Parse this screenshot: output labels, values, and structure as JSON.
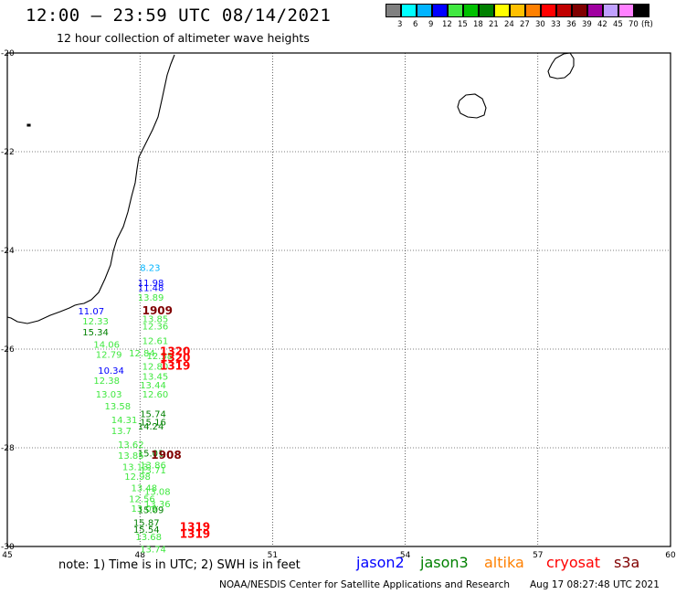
{
  "header": {
    "title": "12:00 – 23:59 UTC 08/14/2021",
    "subtitle": "12 hour collection of altimeter wave heights"
  },
  "color_scale": {
    "colors": [
      "#808080",
      "#00ffff",
      "#00b4ff",
      "#0000ff",
      "#40e840",
      "#00c000",
      "#008000",
      "#ffff00",
      "#ffc000",
      "#ff8000",
      "#ff0000",
      "#c00000",
      "#800000",
      "#a000a0",
      "#c0a0ff",
      "#ff80ff",
      "#000000"
    ],
    "labels": [
      "3",
      "6",
      "9",
      "12",
      "15",
      "18",
      "21",
      "24",
      "27",
      "30",
      "33",
      "36",
      "39",
      "42",
      "45",
      "70",
      "(ft)"
    ]
  },
  "map": {
    "lon_ticks": [
      "45",
      "48",
      "51",
      "54",
      "57",
      "60"
    ],
    "lat_ticks": [
      "-20",
      "-22",
      "-24",
      "-26",
      "-28",
      "-30"
    ],
    "observations": [
      {
        "text": "8.23",
        "lon": 48.0,
        "lat": -24.42,
        "color": "#00b4ff"
      },
      {
        "text": "11.98",
        "lon": 47.95,
        "lat": -24.72,
        "color": "#0000ff"
      },
      {
        "text": "11.48",
        "lon": 47.95,
        "lat": -24.82,
        "color": "#0000ff"
      },
      {
        "text": "13.89",
        "lon": 47.95,
        "lat": -25.02,
        "color": "#40e840"
      },
      {
        "text": "11.07",
        "lon": 46.6,
        "lat": -25.3,
        "color": "#0000ff"
      },
      {
        "text": "1909",
        "lon": 48.05,
        "lat": -25.3,
        "color": "#800000"
      },
      {
        "text": "13.85",
        "lon": 48.05,
        "lat": -25.45,
        "color": "#40e840"
      },
      {
        "text": "12.33",
        "lon": 46.7,
        "lat": -25.5,
        "color": "#40e840"
      },
      {
        "text": "12.36",
        "lon": 48.05,
        "lat": -25.6,
        "color": "#40e840"
      },
      {
        "text": "15.34",
        "lon": 46.7,
        "lat": -25.72,
        "color": "#008000"
      },
      {
        "text": "12.61",
        "lon": 48.05,
        "lat": -25.9,
        "color": "#40e840"
      },
      {
        "text": "14.06",
        "lon": 46.95,
        "lat": -25.97,
        "color": "#40e840"
      },
      {
        "text": "12.79",
        "lon": 47.0,
        "lat": -26.18,
        "color": "#40e840"
      },
      {
        "text": "12.84",
        "lon": 47.75,
        "lat": -26.15,
        "color": "#40e840"
      },
      {
        "text": "12.58",
        "lon": 48.15,
        "lat": -26.2,
        "color": "#40e840"
      },
      {
        "text": "1320",
        "lon": 48.45,
        "lat": -26.12,
        "color": "#ff0000"
      },
      {
        "text": "1320",
        "lon": 48.45,
        "lat": -26.25,
        "color": "#ff0000"
      },
      {
        "text": "12.80",
        "lon": 48.05,
        "lat": -26.42,
        "color": "#40e840"
      },
      {
        "text": "1319",
        "lon": 48.45,
        "lat": -26.42,
        "color": "#ff0000"
      },
      {
        "text": "10.34",
        "lon": 47.05,
        "lat": -26.5,
        "color": "#0000ff"
      },
      {
        "text": "13.45",
        "lon": 48.05,
        "lat": -26.62,
        "color": "#40e840"
      },
      {
        "text": "12.38",
        "lon": 46.95,
        "lat": -26.7,
        "color": "#40e840"
      },
      {
        "text": "13.44",
        "lon": 48.0,
        "lat": -26.8,
        "color": "#40e840"
      },
      {
        "text": "13.03",
        "lon": 47.0,
        "lat": -26.98,
        "color": "#40e840"
      },
      {
        "text": "12.60",
        "lon": 48.05,
        "lat": -26.98,
        "color": "#40e840"
      },
      {
        "text": "13.58",
        "lon": 47.2,
        "lat": -27.22,
        "color": "#40e840"
      },
      {
        "text": "15.74",
        "lon": 48.0,
        "lat": -27.38,
        "color": "#008000"
      },
      {
        "text": "14.31",
        "lon": 47.35,
        "lat": -27.5,
        "color": "#40e840"
      },
      {
        "text": "15.16",
        "lon": 48.0,
        "lat": -27.55,
        "color": "#008000"
      },
      {
        "text": "14.24",
        "lon": 47.95,
        "lat": -27.63,
        "color": "#008000"
      },
      {
        "text": "13.7",
        "lon": 47.35,
        "lat": -27.72,
        "color": "#40e840"
      },
      {
        "text": "13.62",
        "lon": 47.5,
        "lat": -28.0,
        "color": "#40e840"
      },
      {
        "text": "15.01",
        "lon": 47.95,
        "lat": -28.18,
        "color": "#008000"
      },
      {
        "text": "13.85",
        "lon": 47.5,
        "lat": -28.22,
        "color": "#40e840"
      },
      {
        "text": "1908",
        "lon": 48.25,
        "lat": -28.22,
        "color": "#800000"
      },
      {
        "text": "13.86",
        "lon": 48.0,
        "lat": -28.42,
        "color": "#40e840"
      },
      {
        "text": "13.13",
        "lon": 47.6,
        "lat": -28.45,
        "color": "#40e840"
      },
      {
        "text": "13.71",
        "lon": 48.0,
        "lat": -28.52,
        "color": "#40e840"
      },
      {
        "text": "12.98",
        "lon": 47.65,
        "lat": -28.65,
        "color": "#40e840"
      },
      {
        "text": "13.48",
        "lon": 47.8,
        "lat": -28.88,
        "color": "#40e840"
      },
      {
        "text": "13.08",
        "lon": 48.1,
        "lat": -28.95,
        "color": "#40e840"
      },
      {
        "text": "12.56",
        "lon": 47.75,
        "lat": -29.1,
        "color": "#40e840"
      },
      {
        "text": "13.36",
        "lon": 48.1,
        "lat": -29.2,
        "color": "#40e840"
      },
      {
        "text": "13.09",
        "lon": 47.8,
        "lat": -29.3,
        "color": "#40e840"
      },
      {
        "text": "15.09",
        "lon": 47.95,
        "lat": -29.32,
        "color": "#008000"
      },
      {
        "text": "15.87",
        "lon": 47.85,
        "lat": -29.58,
        "color": "#008000"
      },
      {
        "text": "1319",
        "lon": 48.9,
        "lat": -29.68,
        "color": "#ff0000"
      },
      {
        "text": "15.54",
        "lon": 47.85,
        "lat": -29.72,
        "color": "#008000"
      },
      {
        "text": "1319",
        "lon": 48.9,
        "lat": -29.82,
        "color": "#ff0000"
      },
      {
        "text": "13.68",
        "lon": 47.9,
        "lat": -29.87,
        "color": "#40e840"
      },
      {
        "text": "13.74",
        "lon": 48.0,
        "lat": -30.12,
        "color": "#40e840"
      }
    ]
  },
  "footer": {
    "note": "note: 1) Time is in UTC; 2) SWH is in feet",
    "legend": [
      {
        "label": "jason2",
        "color": "#0000ff"
      },
      {
        "label": "jason3",
        "color": "#008000"
      },
      {
        "label": "altika",
        "color": "#ff8000"
      },
      {
        "label": "cryosat",
        "color": "#ff0000"
      },
      {
        "label": "s3a",
        "color": "#800000"
      }
    ],
    "credit": "NOAA/NESDIS Center for Satellite Applications and Research",
    "timestamp": "Aug 17 08:27:48 UTC 2021"
  }
}
